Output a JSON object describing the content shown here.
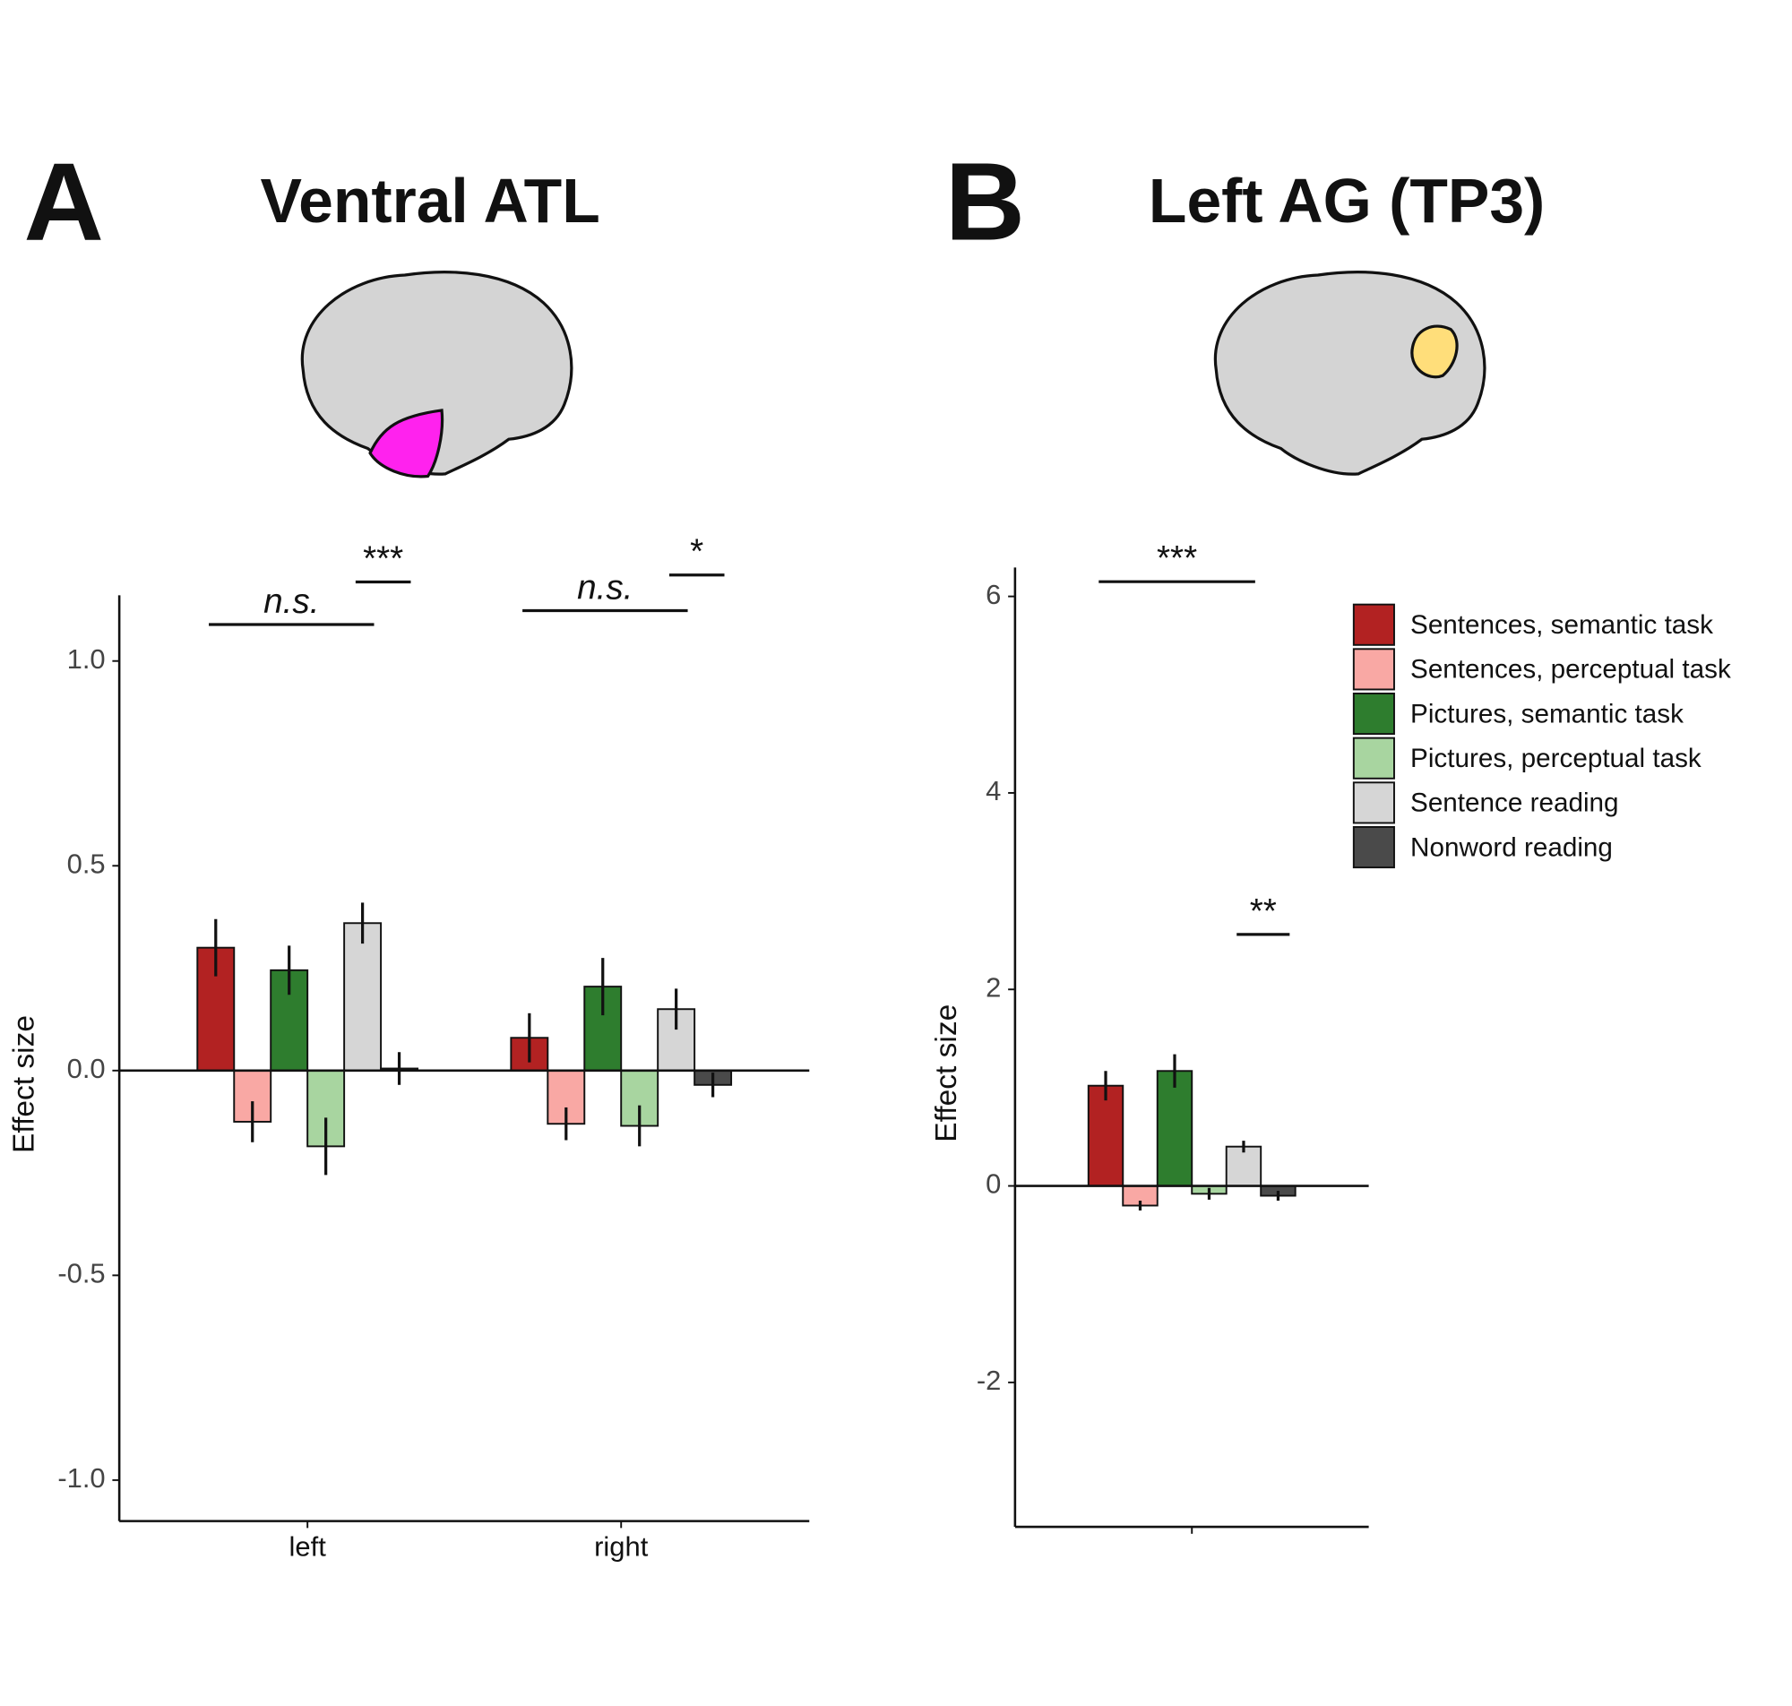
{
  "chart_data": [
    {
      "type": "bar",
      "panel": "A",
      "title": "Ventral ATL",
      "y_label": "Effect size",
      "categories": [
        "left",
        "right"
      ],
      "ylim": [
        -1.1,
        1.09
      ],
      "yticks": [
        {
          "value": -1,
          "label": "-1.0"
        },
        -0.5,
        {
          "value": 0,
          "label": "0.0"
        },
        0.5,
        {
          "value": 1,
          "label": "1.0"
        }
      ],
      "series": [
        {
          "color": "#b22222",
          "values": [
            0.3,
            0.08
          ],
          "errors": [
            0.07,
            0.06
          ]
        },
        {
          "color": "#f9a8a4",
          "values": [
            -0.125,
            -0.13
          ],
          "errors": [
            0.05,
            0.04
          ]
        },
        {
          "color": "#2e7d2e",
          "values": [
            0.245,
            0.205
          ],
          "errors": [
            0.06,
            0.07
          ]
        },
        {
          "color": "#a8d5a0",
          "values": [
            -0.185,
            -0.135
          ],
          "errors": [
            0.07,
            0.05
          ]
        },
        {
          "color": "#d6d6d6",
          "values": [
            0.36,
            0.15
          ],
          "errors": [
            0.05,
            0.05
          ]
        },
        {
          "color": "#4a4a4a",
          "values": [
            0.005,
            -0.035
          ],
          "errors": [
            0.04,
            0.03
          ]
        }
      ],
      "annotations": [
        {
          "label": "n.s.",
          "style": "italic",
          "group": 0,
          "from": 0,
          "to": 4,
          "y": 1.089
        },
        {
          "label": "***",
          "style": "normal",
          "group": 0,
          "from": 4,
          "to": 5,
          "y": 1.193
        },
        {
          "label": "n.s.",
          "style": "italic",
          "group": 1,
          "from": 0,
          "to": 4,
          "y": 1.123
        },
        {
          "label": "*",
          "style": "normal",
          "group": 1,
          "from": 4,
          "to": 5,
          "y": 1.21
        }
      ]
    },
    {
      "type": "bar",
      "panel": "B",
      "title": "Left AG (TP3)",
      "y_label": "Effect size",
      "categories": [
        null
      ],
      "ylim": [
        -3.47,
        6
      ],
      "yticks": [
        -2,
        0,
        2,
        4,
        6
      ],
      "legend": "right",
      "series": [
        {
          "name": "Sentences, semantic task",
          "color": "#b22222",
          "values": [
            1.02
          ],
          "errors": [
            0.15
          ]
        },
        {
          "name": "Sentences, perceptual task",
          "color": "#f9a8a4",
          "values": [
            -0.2
          ],
          "errors": [
            0.05
          ]
        },
        {
          "name": "Pictures, semantic task",
          "color": "#2e7d2e",
          "values": [
            1.17
          ],
          "errors": [
            0.17
          ]
        },
        {
          "name": "Pictures, perceptual task",
          "color": "#a8d5a0",
          "values": [
            -0.08
          ],
          "errors": [
            0.06
          ]
        },
        {
          "name": "Sentence reading",
          "color": "#d6d6d6",
          "values": [
            0.4
          ],
          "errors": [
            0.06
          ]
        },
        {
          "name": "Nonword reading",
          "color": "#4a4a4a",
          "values": [
            -0.1
          ],
          "errors": [
            0.05
          ]
        }
      ],
      "annotations": [
        {
          "label": "***",
          "style": "normal",
          "group": 0,
          "from": 0,
          "to": 4,
          "y": 6.15
        },
        {
          "label": "**",
          "style": "normal",
          "group": 0,
          "from": 4,
          "to": 5,
          "y": 2.56
        }
      ]
    }
  ]
}
